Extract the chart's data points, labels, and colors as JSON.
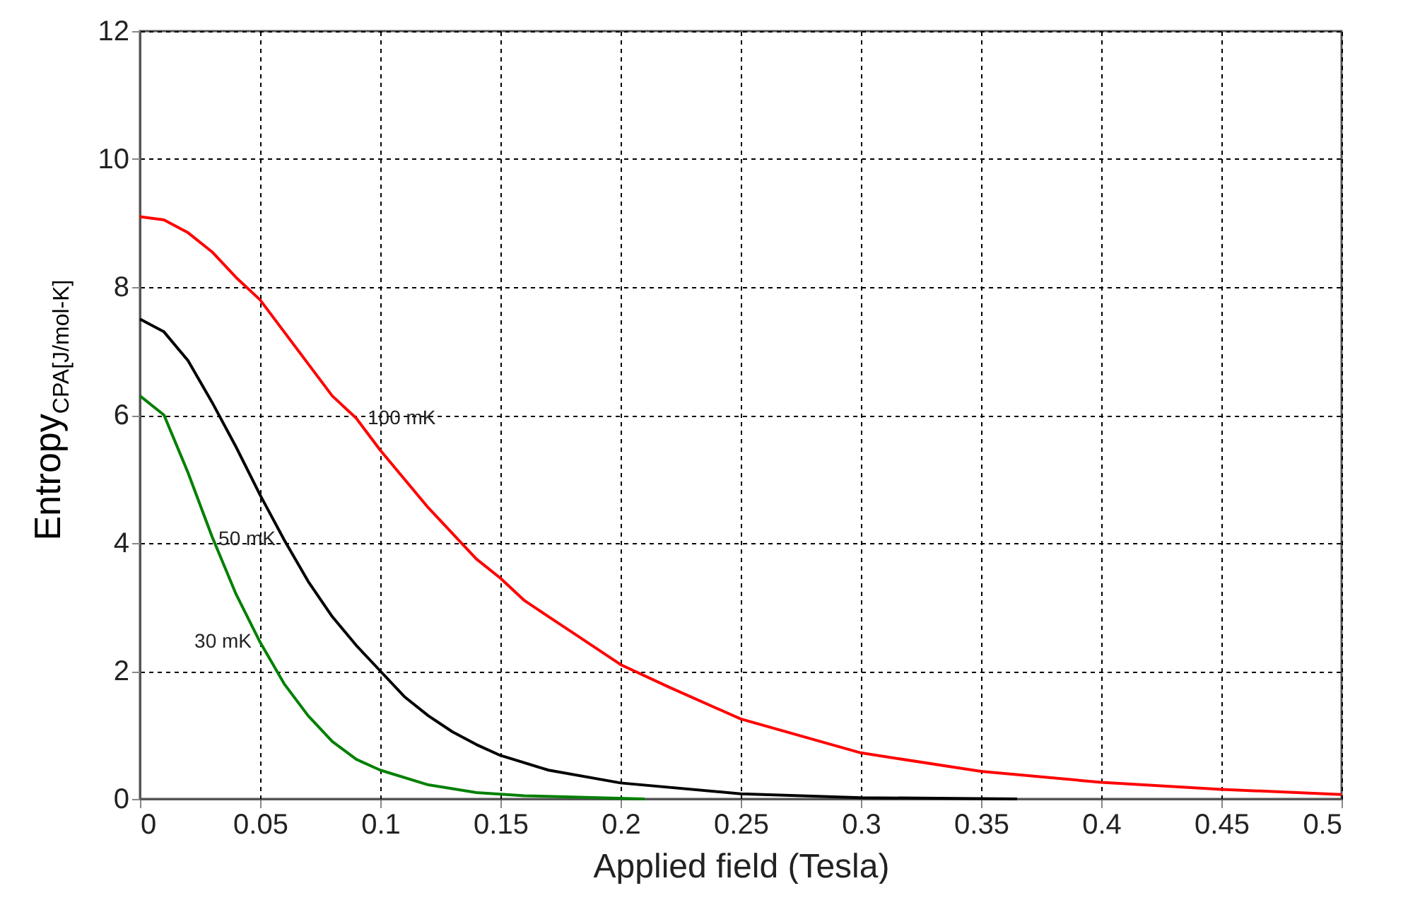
{
  "chart_data": {
    "type": "line",
    "xlabel": "Applied field (Tesla)",
    "ylabel": "Entropy$_{CPA[J/mol-K]}$",
    "xlim": [
      0,
      0.5
    ],
    "xticks": [
      0,
      0.05,
      0.1,
      0.15,
      0.2,
      0.25,
      0.3,
      0.35,
      0.4,
      0.45,
      0.5
    ],
    "ylim": [
      0,
      12
    ],
    "yticks": [
      0,
      2,
      4,
      6,
      8,
      10,
      12
    ],
    "grid": true,
    "line_style": "solid",
    "marker": "none",
    "series": [
      {
        "name": "100 mK",
        "color": "#ff0000",
        "x": [
          0,
          0.01,
          0.02,
          0.03,
          0.04,
          0.05,
          0.06,
          0.07,
          0.08,
          0.09,
          0.1,
          0.11,
          0.12,
          0.13,
          0.14,
          0.15,
          0.16,
          0.17,
          0.18,
          0.2,
          0.22,
          0.25,
          0.3,
          0.35,
          0.4,
          0.45,
          0.5
        ],
        "values": [
          9.1,
          9.05,
          8.85,
          8.55,
          8.15,
          7.8,
          7.3,
          6.8,
          6.3,
          5.95,
          5.45,
          5.0,
          4.55,
          4.15,
          3.75,
          3.45,
          3.1,
          2.85,
          2.6,
          2.1,
          1.75,
          1.25,
          0.72,
          0.43,
          0.26,
          0.15,
          0.07
        ]
      },
      {
        "name": "50 mK",
        "color": "#000000",
        "x": [
          0,
          0.01,
          0.02,
          0.03,
          0.04,
          0.05,
          0.06,
          0.07,
          0.08,
          0.09,
          0.1,
          0.11,
          0.12,
          0.13,
          0.14,
          0.15,
          0.17,
          0.2,
          0.25,
          0.3,
          0.365
        ],
        "values": [
          7.5,
          7.3,
          6.85,
          6.2,
          5.5,
          4.75,
          4.05,
          3.4,
          2.85,
          2.4,
          2.0,
          1.6,
          1.3,
          1.05,
          0.85,
          0.68,
          0.45,
          0.25,
          0.08,
          0.02,
          0
        ]
      },
      {
        "name": "30 mK",
        "color": "#008000",
        "x": [
          0,
          0.01,
          0.02,
          0.03,
          0.04,
          0.05,
          0.06,
          0.07,
          0.08,
          0.09,
          0.1,
          0.12,
          0.14,
          0.16,
          0.21
        ],
        "values": [
          6.3,
          6.0,
          5.1,
          4.1,
          3.2,
          2.45,
          1.8,
          1.3,
          0.9,
          0.62,
          0.45,
          0.22,
          0.1,
          0.05,
          0
        ]
      }
    ]
  }
}
